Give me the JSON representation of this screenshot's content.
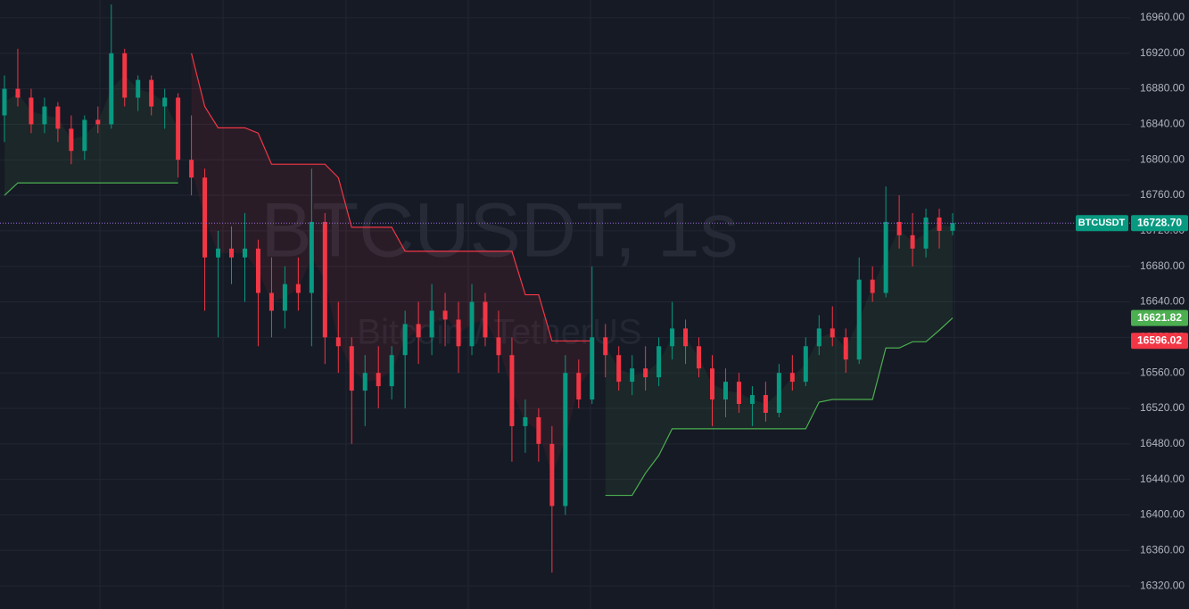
{
  "chart_data": {
    "type": "candlestick",
    "watermark": "BTCUSDT, 1s",
    "watermark_subtitle": "Bitcoin / TetherUS",
    "ylim": [
      16294,
      16980
    ],
    "yticks": [
      {
        "value": 16320,
        "label": "16320.00"
      },
      {
        "value": 16360,
        "label": "16360.00"
      },
      {
        "value": 16400,
        "label": "16400.00"
      },
      {
        "value": 16440,
        "label": "16440.00"
      },
      {
        "value": 16480,
        "label": "16480.00"
      },
      {
        "value": 16520,
        "label": "16520.00"
      },
      {
        "value": 16560,
        "label": "16560.00"
      },
      {
        "value": 16600,
        "label": "16600.00"
      },
      {
        "value": 16640,
        "label": "16640.00"
      },
      {
        "value": 16680,
        "label": "16680.00"
      },
      {
        "value": 16720,
        "label": "16720.00"
      },
      {
        "value": 16760,
        "label": "16760.00"
      },
      {
        "value": 16800,
        "label": "16800.00"
      },
      {
        "value": 16840,
        "label": "16840.00"
      },
      {
        "value": 16880,
        "label": "16880.00"
      },
      {
        "value": 16920,
        "label": "16920.00"
      },
      {
        "value": 16960,
        "label": "16960.00"
      }
    ],
    "grid": true,
    "up_color": "#089981",
    "down_color": "#f23645",
    "open": [
      16850,
      16880,
      16870,
      16840,
      16860,
      16835,
      16810,
      16845,
      16840,
      16920,
      16870,
      16890,
      16860,
      16870,
      16800,
      16780,
      16690,
      16700,
      16690,
      16700,
      16650,
      16630,
      16660,
      16650,
      16730,
      16600,
      16590,
      16540,
      16560,
      16545,
      16580,
      16615,
      16600,
      16630,
      16620,
      16590,
      16640,
      16600,
      16580,
      16500,
      16510,
      16480,
      16410,
      16560,
      16530,
      16600,
      16580,
      16550,
      16565,
      16555,
      16590,
      16610,
      16590,
      16565,
      16530,
      16550,
      16525,
      16535,
      16515,
      16560,
      16550,
      16590,
      16610,
      16600,
      16575,
      16665,
      16650,
      16730,
      16715,
      16700,
      16735,
      16720
    ],
    "high": [
      16895,
      16925,
      16880,
      16870,
      16865,
      16850,
      16850,
      16860,
      16975,
      16925,
      16895,
      16895,
      16880,
      16875,
      16850,
      16790,
      16720,
      16725,
      16740,
      16710,
      16690,
      16680,
      16690,
      16790,
      16740,
      16640,
      16600,
      16580,
      16590,
      16590,
      16630,
      16640,
      16660,
      16650,
      16640,
      16660,
      16650,
      16630,
      16600,
      16530,
      16520,
      16500,
      16580,
      16575,
      16680,
      16615,
      16590,
      16580,
      16590,
      16600,
      16640,
      16620,
      16600,
      16580,
      16565,
      16560,
      16545,
      16550,
      16570,
      16580,
      16600,
      16625,
      16635,
      16610,
      16690,
      16680,
      16770,
      16760,
      16740,
      16745,
      16745,
      16740
    ],
    "low": [
      16820,
      16860,
      16830,
      16830,
      16820,
      16795,
      16800,
      16830,
      16835,
      16860,
      16855,
      16850,
      16835,
      16780,
      16760,
      16630,
      16600,
      16660,
      16640,
      16590,
      16600,
      16610,
      16630,
      16590,
      16570,
      16560,
      16480,
      16500,
      16520,
      16530,
      16520,
      16570,
      16580,
      16590,
      16560,
      16580,
      16590,
      16560,
      16460,
      16470,
      16460,
      16335,
      16400,
      16520,
      16525,
      16555,
      16540,
      16535,
      16540,
      16545,
      16575,
      16570,
      16555,
      16500,
      16510,
      16515,
      16500,
      16505,
      16510,
      16540,
      16545,
      16580,
      16590,
      16560,
      16570,
      16640,
      16645,
      16700,
      16680,
      16690,
      16700,
      16715
    ],
    "close": [
      16880,
      16870,
      16840,
      16860,
      16835,
      16810,
      16845,
      16840,
      16920,
      16870,
      16890,
      16860,
      16870,
      16800,
      16780,
      16690,
      16700,
      16690,
      16700,
      16650,
      16630,
      16660,
      16650,
      16730,
      16600,
      16590,
      16540,
      16560,
      16545,
      16580,
      16615,
      16600,
      16630,
      16620,
      16590,
      16640,
      16600,
      16580,
      16500,
      16510,
      16480,
      16410,
      16560,
      16530,
      16600,
      16580,
      16550,
      16565,
      16555,
      16590,
      16610,
      16590,
      16565,
      16530,
      16550,
      16525,
      16535,
      16515,
      16560,
      16550,
      16590,
      16610,
      16600,
      16575,
      16665,
      16650,
      16730,
      16715,
      16700,
      16735,
      16720,
      16728.7
    ],
    "series": [
      {
        "color": "#4caf50",
        "values": [
          16760,
          16774,
          16774,
          16774,
          16774,
          16774,
          16774,
          16774,
          16774,
          16774,
          16774,
          16774,
          16774,
          16774,
          null,
          null,
          null,
          null,
          null,
          null,
          null,
          null,
          null,
          null,
          null,
          null,
          null,
          null,
          null,
          null,
          null,
          null,
          null,
          null,
          null,
          null,
          null,
          null,
          null,
          null,
          null,
          null,
          null,
          null,
          null,
          16422,
          16422,
          16422,
          16447,
          16467,
          16497,
          16497,
          16497,
          16497,
          16497,
          16497,
          16497,
          16497,
          16497,
          16497,
          16497,
          16527,
          16530,
          16530,
          16530,
          16530,
          16588,
          16588,
          16595,
          16595,
          16608,
          16621.82
        ]
      },
      {
        "color": "#f23645",
        "values": [
          null,
          null,
          null,
          null,
          null,
          null,
          null,
          null,
          null,
          null,
          null,
          null,
          null,
          null,
          16920,
          16860,
          16836,
          16836,
          16836,
          16830,
          16795,
          16795,
          16795,
          16795,
          16795,
          16780,
          16724,
          16724,
          16724,
          16724,
          16697,
          16697,
          16697,
          16697,
          16697,
          16697,
          16697,
          16697,
          16697,
          16648,
          16648,
          16596,
          16596,
          16596,
          16596,
          null,
          null,
          null,
          null,
          null,
          null,
          null,
          null,
          null,
          null,
          null,
          null,
          null,
          null,
          null,
          null,
          null,
          null,
          null,
          null,
          null,
          null,
          null,
          null,
          null,
          null,
          null
        ]
      }
    ],
    "last_price": {
      "symbol": "BTCUSDT",
      "value": 16728.7,
      "label": "16728.70",
      "color": "#089981",
      "line_color": "#9c6ade"
    },
    "price_labels": [
      {
        "value": 16621.82,
        "label": "16621.82",
        "color": "#4caf50"
      },
      {
        "value": 16596.02,
        "label": "16596.02",
        "color": "#f23645"
      }
    ]
  }
}
